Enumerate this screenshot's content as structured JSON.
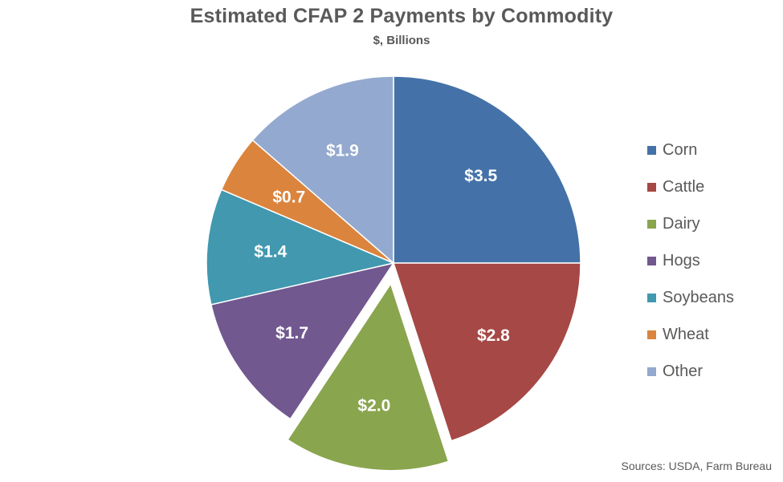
{
  "chart_data": {
    "type": "pie",
    "title": "Estimated CFAP 2 Payments by Commodity",
    "subtitle": "$, Billions",
    "categories": [
      "Corn",
      "Cattle",
      "Dairy",
      "Hogs",
      "Soybeans",
      "Wheat",
      "Other"
    ],
    "values": [
      3.5,
      2.8,
      2.0,
      1.7,
      1.4,
      0.7,
      1.9
    ],
    "data_labels": [
      "$3.5",
      "$2.8",
      "$2.0",
      "$1.7",
      "$1.4",
      "$0.7",
      "$1.9"
    ],
    "colors": [
      "#4472A8",
      "#A64845",
      "#89A54E",
      "#71588F",
      "#4198AF",
      "#DB843D",
      "#93A9CF"
    ],
    "exploded_slice": "Dairy",
    "legend_position": "right",
    "source": "Sources: USDA, Farm Bureau"
  }
}
